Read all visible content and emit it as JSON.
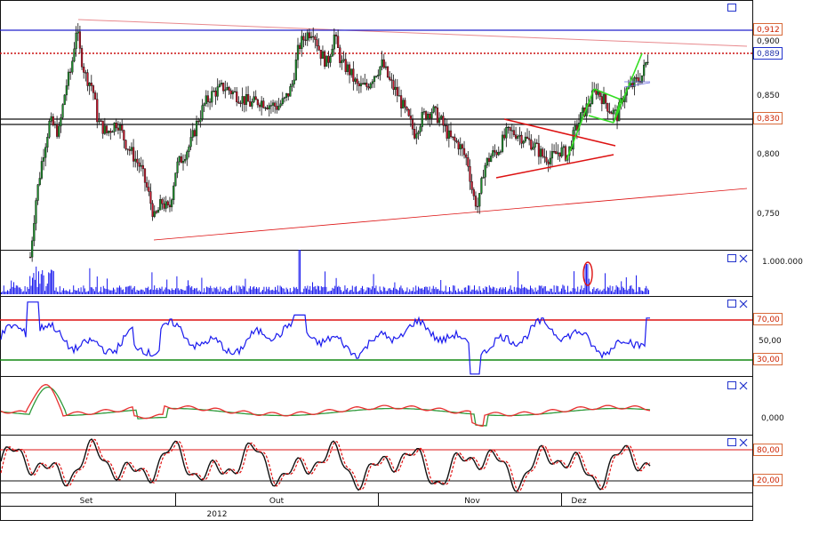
{
  "colors": {
    "background": "#ffffff",
    "grid": "#111111",
    "price_line": "#2222cc",
    "volume": "#1a1aee",
    "rsi": "#1a1aee",
    "line_red": "#dd1111",
    "line_green": "#118811",
    "box_border": "#d86a3a",
    "box_border_blue": "#2233cc",
    "macd_red": "#e83030",
    "macd_green": "#2e9a3a",
    "stoch_black": "#111111",
    "stoch_red": "#e01010",
    "trend_pink": "#e8898d",
    "pattern_green": "#33dd22"
  },
  "icons": {
    "maximize": "maximize-icon",
    "close": "close-icon"
  },
  "chart_data": [
    {
      "type": "candlestick",
      "panel": "price",
      "ylim": [
        0.705,
        0.925
      ],
      "yticks": [
        "0,900",
        "0,850",
        "0,800",
        "0,750"
      ],
      "price_labels": [
        "0,912",
        "0,889",
        "0,830"
      ],
      "levels": {
        "resistance_blue": 0.912,
        "current_dotted": 0.889,
        "support_black_1": 0.834,
        "support_black_2": 0.825
      },
      "x_months": [
        "Set",
        "Out",
        "Nov",
        "Dez"
      ],
      "year": "2012",
      "series_approx": [
        {
          "period": "Set start",
          "low": 0.71,
          "high": 0.83
        },
        {
          "period": "Set early peak",
          "high": 0.915
        },
        {
          "period": "Set mid low",
          "low": 0.725
        },
        {
          "period": "Out peak",
          "high": 0.912
        },
        {
          "period": "Nov low",
          "low": 0.75
        },
        {
          "period": "Dez end",
          "close": 0.889
        }
      ],
      "trendlines": [
        {
          "from": [
            "2012-09-01",
            0.915
          ],
          "to": [
            "2012-12-31",
            0.895
          ]
        },
        {
          "from": [
            "2012-09-14",
            0.722
          ],
          "to": [
            "2012-12-31",
            0.77
          ]
        }
      ]
    },
    {
      "type": "bar",
      "panel": "volume",
      "ytick": "1.000.000"
    },
    {
      "type": "line",
      "panel": "rsi",
      "ylim": [
        15,
        100
      ],
      "yticks": [
        "50,00"
      ],
      "levels": {
        "upper": 70,
        "lower": 30
      },
      "level_labels": [
        "70,00",
        "30,00"
      ]
    },
    {
      "type": "line",
      "panel": "macd",
      "yticks": [
        "0,000"
      ]
    },
    {
      "type": "line",
      "panel": "stochastic",
      "ylim": [
        0,
        100
      ],
      "levels": {
        "upper": 80,
        "lower": 20
      },
      "level_labels": [
        "80,00",
        "20,00"
      ]
    }
  ]
}
